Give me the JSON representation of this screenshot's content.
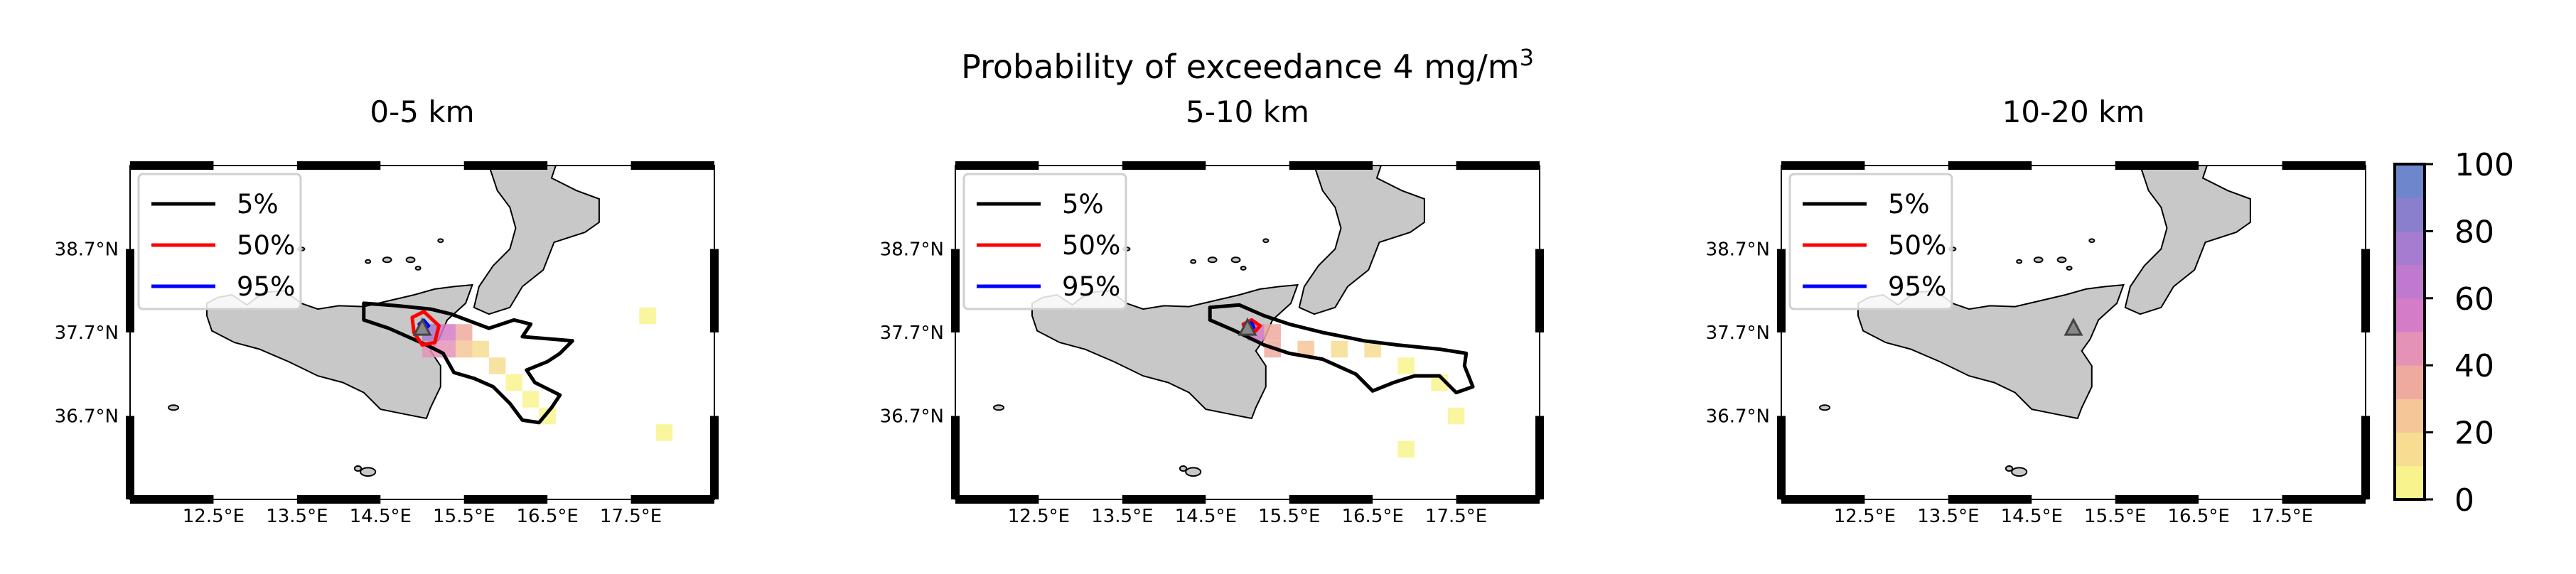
{
  "suptitle": {
    "main": "Probability of exceedance 4 mg/m",
    "superscript": "3"
  },
  "colorbar": {
    "ticks": [
      "0",
      "20",
      "40",
      "60",
      "80",
      "100"
    ],
    "colors": [
      "#f9f38e",
      "#f6dd91",
      "#f4c698",
      "#eeaa9f",
      "#e493b6",
      "#d47cc7",
      "#bf79cf",
      "#a57ccf",
      "#8a7fcd",
      "#6d86cc"
    ]
  },
  "chart_data": [
    {
      "type": "heatmap",
      "title": "0-5 km",
      "x_ticks": [
        "12.5°E",
        "13.5°E",
        "14.5°E",
        "15.5°E",
        "16.5°E",
        "17.5°E"
      ],
      "y_ticks": [
        "38.7°N",
        "37.7°N",
        "36.7°N"
      ],
      "legend": [
        "5%",
        "50%",
        "95%"
      ],
      "legend_position": "top-left",
      "colormap_range": [
        0,
        100
      ],
      "contour_levels": [
        5,
        50,
        95
      ],
      "marker": "volcano triangle near 15.0°E 37.75°N",
      "cells": [
        {
          "lon": 15.1,
          "lat": 37.7,
          "value": 70
        },
        {
          "lon": 15.3,
          "lat": 37.7,
          "value": 55
        },
        {
          "lon": 15.1,
          "lat": 37.5,
          "value": 45
        },
        {
          "lon": 15.3,
          "lat": 37.5,
          "value": 40
        },
        {
          "lon": 15.5,
          "lat": 37.7,
          "value": 30
        },
        {
          "lon": 15.5,
          "lat": 37.5,
          "value": 25
        },
        {
          "lon": 15.7,
          "lat": 37.5,
          "value": 15
        },
        {
          "lon": 15.9,
          "lat": 37.3,
          "value": 10
        },
        {
          "lon": 16.1,
          "lat": 37.1,
          "value": 8
        },
        {
          "lon": 16.3,
          "lat": 36.9,
          "value": 6
        },
        {
          "lon": 16.5,
          "lat": 36.7,
          "value": 5
        },
        {
          "lon": 17.7,
          "lat": 37.9,
          "value": 3
        },
        {
          "lon": 17.9,
          "lat": 36.5,
          "value": 3
        }
      ]
    },
    {
      "type": "heatmap",
      "title": "5-10 km",
      "x_ticks": [
        "12.5°E",
        "13.5°E",
        "14.5°E",
        "15.5°E",
        "16.5°E",
        "17.5°E"
      ],
      "y_ticks": [
        "38.7°N",
        "37.7°N",
        "36.7°N"
      ],
      "legend": [
        "5%",
        "50%",
        "95%"
      ],
      "legend_position": "top-left",
      "colormap_range": [
        0,
        100
      ],
      "contour_levels": [
        5,
        50,
        95
      ],
      "marker": "volcano triangle near 15.0°E 37.75°N",
      "cells": [
        {
          "lon": 15.1,
          "lat": 37.7,
          "value": 55
        },
        {
          "lon": 15.3,
          "lat": 37.7,
          "value": 35
        },
        {
          "lon": 15.3,
          "lat": 37.5,
          "value": 30
        },
        {
          "lon": 15.7,
          "lat": 37.5,
          "value": 20
        },
        {
          "lon": 16.1,
          "lat": 37.5,
          "value": 12
        },
        {
          "lon": 16.5,
          "lat": 37.5,
          "value": 10
        },
        {
          "lon": 16.9,
          "lat": 37.3,
          "value": 8
        },
        {
          "lon": 17.3,
          "lat": 37.1,
          "value": 6
        },
        {
          "lon": 17.5,
          "lat": 36.7,
          "value": 4
        },
        {
          "lon": 16.9,
          "lat": 36.3,
          "value": 3
        }
      ]
    },
    {
      "type": "heatmap",
      "title": "10-20 km",
      "x_ticks": [
        "12.5°E",
        "13.5°E",
        "14.5°E",
        "15.5°E",
        "16.5°E",
        "17.5°E"
      ],
      "y_ticks": [
        "38.7°N",
        "37.7°N",
        "36.7°N"
      ],
      "legend": [
        "5%",
        "50%",
        "95%"
      ],
      "legend_position": "top-left",
      "colormap_range": [
        0,
        100
      ],
      "contour_levels": [
        5,
        50,
        95
      ],
      "marker": "volcano triangle near 15.0°E 37.75°N",
      "cells": []
    }
  ]
}
